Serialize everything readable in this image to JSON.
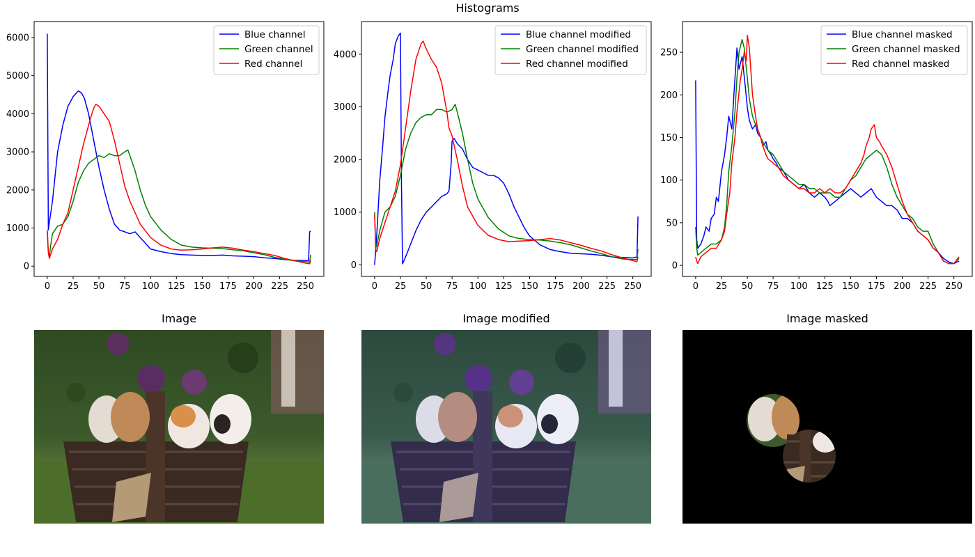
{
  "figure": {
    "suptitle": "Histograms",
    "image_titles": [
      "Image",
      "Image modified",
      "Image masked"
    ],
    "photos": [
      {
        "subject": "kittens-in-basket-photo",
        "variant": "original"
      },
      {
        "subject": "kittens-in-basket-photo",
        "variant": "blue-shifted"
      },
      {
        "subject": "kittens-in-basket-photo",
        "variant": "circular-mask-two-regions"
      }
    ],
    "colors": {
      "blue": "#0000ff",
      "green": "#008000",
      "red": "#ff0000"
    }
  },
  "chart_data": [
    {
      "type": "line",
      "title": "",
      "xlabel": "",
      "ylabel": "",
      "xlim": [
        -12.75,
        267.75
      ],
      "ylim": [
        -270,
        6420
      ],
      "xticks": [
        0,
        25,
        50,
        75,
        100,
        125,
        150,
        175,
        200,
        225,
        250
      ],
      "yticks": [
        0,
        1000,
        2000,
        3000,
        4000,
        5000,
        6000
      ],
      "legend": "top-right",
      "grid": false,
      "series": [
        {
          "name": "Blue channel",
          "color": "#0000ff",
          "x": [
            0,
            1,
            2,
            5,
            10,
            15,
            20,
            25,
            30,
            33,
            36,
            40,
            45,
            50,
            55,
            60,
            65,
            70,
            75,
            80,
            85,
            90,
            95,
            100,
            110,
            120,
            130,
            140,
            150,
            160,
            170,
            180,
            190,
            200,
            210,
            220,
            230,
            240,
            250,
            253,
            254,
            255
          ],
          "y": [
            6100,
            950,
            1150,
            1700,
            3000,
            3700,
            4200,
            4450,
            4600,
            4550,
            4400,
            4000,
            3300,
            2600,
            2000,
            1500,
            1100,
            950,
            900,
            850,
            900,
            750,
            600,
            450,
            380,
            330,
            300,
            290,
            280,
            280,
            290,
            270,
            260,
            250,
            220,
            200,
            170,
            150,
            150,
            140,
            900,
            920
          ]
        },
        {
          "name": "Green channel",
          "color": "#008000",
          "x": [
            0,
            1,
            2,
            3,
            5,
            10,
            15,
            20,
            25,
            30,
            35,
            40,
            45,
            50,
            55,
            60,
            65,
            70,
            75,
            78,
            80,
            85,
            90,
            95,
            100,
            110,
            120,
            130,
            140,
            150,
            160,
            170,
            180,
            190,
            200,
            210,
            220,
            230,
            240,
            250,
            254,
            255
          ],
          "y": [
            900,
            350,
            250,
            500,
            850,
            1050,
            1100,
            1300,
            1700,
            2200,
            2500,
            2700,
            2800,
            2900,
            2850,
            2950,
            2900,
            2900,
            3000,
            3050,
            2900,
            2500,
            2000,
            1600,
            1300,
            950,
            700,
            550,
            500,
            480,
            470,
            460,
            430,
            400,
            350,
            300,
            230,
            180,
            140,
            120,
            100,
            300
          ]
        },
        {
          "name": "Red channel",
          "color": "#ff0000",
          "x": [
            0,
            1,
            2,
            5,
            10,
            15,
            20,
            25,
            30,
            35,
            40,
            42,
            45,
            47,
            50,
            55,
            60,
            65,
            70,
            75,
            80,
            85,
            90,
            100,
            110,
            120,
            130,
            140,
            150,
            160,
            170,
            180,
            190,
            200,
            210,
            220,
            230,
            240,
            250,
            254,
            255
          ],
          "y": [
            950,
            350,
            200,
            450,
            700,
            1100,
            1400,
            2000,
            2600,
            3200,
            3700,
            3900,
            4150,
            4250,
            4200,
            4000,
            3800,
            3300,
            2700,
            2100,
            1700,
            1400,
            1100,
            750,
            550,
            450,
            420,
            430,
            450,
            480,
            500,
            470,
            420,
            380,
            330,
            280,
            200,
            140,
            80,
            60,
            150
          ]
        }
      ]
    },
    {
      "type": "line",
      "title": "",
      "xlabel": "",
      "ylabel": "",
      "xlim": [
        -12.75,
        267.75
      ],
      "ylim": [
        -220,
        4620
      ],
      "xticks": [
        0,
        25,
        50,
        75,
        100,
        125,
        150,
        175,
        200,
        225,
        250
      ],
      "yticks": [
        0,
        1000,
        2000,
        3000,
        4000
      ],
      "legend": "top-right",
      "grid": false,
      "series": [
        {
          "name": "Blue channel modified",
          "color": "#0000ff",
          "x": [
            0,
            2,
            5,
            8,
            10,
            13,
            15,
            18,
            20,
            23,
            25,
            26,
            27,
            30,
            35,
            40,
            45,
            50,
            55,
            60,
            65,
            70,
            72,
            74,
            75,
            77,
            80,
            85,
            90,
            95,
            100,
            105,
            110,
            115,
            120,
            125,
            130,
            135,
            140,
            145,
            150,
            160,
            170,
            180,
            190,
            200,
            210,
            220,
            230,
            240,
            250,
            254,
            255
          ],
          "y": [
            0,
            550,
            1600,
            2300,
            2800,
            3300,
            3600,
            3900,
            4200,
            4350,
            4400,
            1500,
            20,
            150,
            400,
            650,
            850,
            1000,
            1100,
            1200,
            1300,
            1350,
            1400,
            1900,
            2350,
            2400,
            2300,
            2200,
            2000,
            1850,
            1800,
            1750,
            1700,
            1700,
            1650,
            1550,
            1350,
            1100,
            900,
            700,
            550,
            380,
            290,
            250,
            220,
            210,
            200,
            180,
            150,
            140,
            130,
            150,
            920
          ]
        },
        {
          "name": "Green channel modified",
          "color": "#008000",
          "x": [
            0,
            1,
            2,
            5,
            10,
            15,
            20,
            25,
            30,
            35,
            40,
            45,
            50,
            55,
            60,
            65,
            70,
            75,
            78,
            80,
            85,
            90,
            95,
            100,
            110,
            120,
            130,
            140,
            150,
            160,
            170,
            180,
            190,
            200,
            210,
            220,
            230,
            240,
            250,
            254,
            255
          ],
          "y": [
            1000,
            400,
            350,
            650,
            1000,
            1100,
            1300,
            1700,
            2200,
            2500,
            2700,
            2800,
            2850,
            2850,
            2950,
            2950,
            2900,
            2950,
            3050,
            2900,
            2500,
            2000,
            1550,
            1250,
            900,
            680,
            550,
            500,
            480,
            470,
            450,
            420,
            380,
            320,
            260,
            210,
            150,
            110,
            100,
            100,
            300
          ]
        },
        {
          "name": "Red channel modified",
          "color": "#ff0000",
          "x": [
            0,
            1,
            2,
            5,
            10,
            15,
            20,
            25,
            30,
            35,
            40,
            45,
            47,
            50,
            55,
            60,
            65,
            70,
            72,
            75,
            80,
            85,
            90,
            100,
            110,
            120,
            130,
            140,
            150,
            160,
            170,
            180,
            190,
            200,
            210,
            220,
            230,
            240,
            250,
            254,
            255
          ],
          "y": [
            950,
            300,
            250,
            500,
            800,
            1100,
            1400,
            1900,
            2600,
            3300,
            3900,
            4200,
            4250,
            4100,
            3900,
            3750,
            3450,
            2900,
            2600,
            2450,
            2000,
            1500,
            1100,
            750,
            560,
            480,
            440,
            450,
            460,
            480,
            500,
            470,
            420,
            370,
            310,
            260,
            190,
            130,
            80,
            60,
            150
          ]
        }
      ]
    },
    {
      "type": "line",
      "title": "",
      "xlabel": "",
      "ylabel": "",
      "xlim": [
        -12.75,
        267.75
      ],
      "ylim": [
        -13,
        286
      ],
      "xticks": [
        0,
        25,
        50,
        75,
        100,
        125,
        150,
        175,
        200,
        225,
        250
      ],
      "yticks": [
        0,
        50,
        100,
        150,
        200,
        250
      ],
      "legend": "top-right",
      "grid": false,
      "series": [
        {
          "name": "Blue channel masked",
          "color": "#0000ff",
          "x": [
            0,
            1,
            2,
            5,
            8,
            10,
            13,
            15,
            18,
            20,
            22,
            25,
            28,
            30,
            32,
            35,
            37,
            40,
            42,
            45,
            48,
            50,
            52,
            55,
            58,
            60,
            63,
            65,
            68,
            70,
            73,
            75,
            78,
            80,
            85,
            90,
            95,
            100,
            105,
            110,
            115,
            120,
            125,
            128,
            130,
            135,
            140,
            145,
            150,
            155,
            160,
            165,
            170,
            175,
            180,
            185,
            190,
            195,
            200,
            205,
            210,
            215,
            220,
            225,
            230,
            235,
            240,
            245,
            250,
            255
          ],
          "y": [
            217,
            30,
            20,
            25,
            35,
            45,
            40,
            55,
            60,
            80,
            75,
            110,
            130,
            150,
            175,
            160,
            200,
            255,
            230,
            245,
            210,
            185,
            170,
            160,
            165,
            155,
            150,
            140,
            145,
            135,
            130,
            125,
            120,
            115,
            110,
            100,
            95,
            90,
            95,
            85,
            80,
            85,
            80,
            75,
            70,
            75,
            80,
            85,
            90,
            85,
            80,
            85,
            90,
            80,
            75,
            70,
            70,
            65,
            55,
            55,
            50,
            40,
            35,
            30,
            20,
            15,
            8,
            4,
            2,
            5
          ]
        },
        {
          "name": "Green channel masked",
          "color": "#008000",
          "x": [
            0,
            1,
            2,
            5,
            10,
            15,
            20,
            25,
            28,
            30,
            32,
            35,
            38,
            40,
            42,
            45,
            47,
            50,
            52,
            55,
            58,
            60,
            63,
            65,
            70,
            75,
            80,
            85,
            90,
            95,
            100,
            105,
            110,
            115,
            120,
            125,
            130,
            135,
            140,
            145,
            150,
            155,
            160,
            165,
            170,
            175,
            180,
            185,
            190,
            195,
            200,
            205,
            210,
            215,
            220,
            225,
            230,
            235,
            240,
            245,
            250,
            255
          ],
          "y": [
            45,
            20,
            12,
            15,
            20,
            25,
            25,
            30,
            45,
            70,
            110,
            140,
            180,
            220,
            250,
            265,
            255,
            220,
            195,
            175,
            165,
            160,
            150,
            145,
            135,
            130,
            120,
            110,
            105,
            100,
            95,
            95,
            90,
            90,
            85,
            85,
            85,
            80,
            80,
            90,
            100,
            105,
            115,
            125,
            130,
            135,
            130,
            115,
            95,
            80,
            70,
            60,
            55,
            45,
            40,
            40,
            25,
            15,
            5,
            2,
            2,
            8
          ]
        },
        {
          "name": "Red channel masked",
          "color": "#ff0000",
          "x": [
            0,
            1,
            2,
            5,
            10,
            15,
            20,
            25,
            28,
            30,
            33,
            35,
            38,
            40,
            43,
            45,
            47,
            49,
            50,
            52,
            55,
            58,
            60,
            63,
            65,
            68,
            70,
            75,
            80,
            85,
            90,
            95,
            100,
            105,
            110,
            115,
            120,
            125,
            130,
            135,
            140,
            145,
            150,
            155,
            160,
            163,
            165,
            168,
            170,
            173,
            175,
            178,
            180,
            185,
            190,
            195,
            200,
            205,
            210,
            215,
            220,
            225,
            230,
            235,
            240,
            245,
            250,
            255
          ],
          "y": [
            10,
            5,
            2,
            10,
            15,
            20,
            20,
            30,
            40,
            60,
            85,
            120,
            150,
            180,
            215,
            230,
            250,
            240,
            270,
            255,
            200,
            175,
            160,
            150,
            140,
            130,
            125,
            120,
            115,
            105,
            100,
            95,
            90,
            90,
            85,
            85,
            90,
            85,
            90,
            85,
            85,
            90,
            100,
            110,
            120,
            130,
            140,
            150,
            160,
            165,
            150,
            145,
            140,
            130,
            115,
            95,
            75,
            60,
            50,
            40,
            35,
            30,
            20,
            15,
            5,
            2,
            2,
            10
          ]
        }
      ]
    }
  ]
}
